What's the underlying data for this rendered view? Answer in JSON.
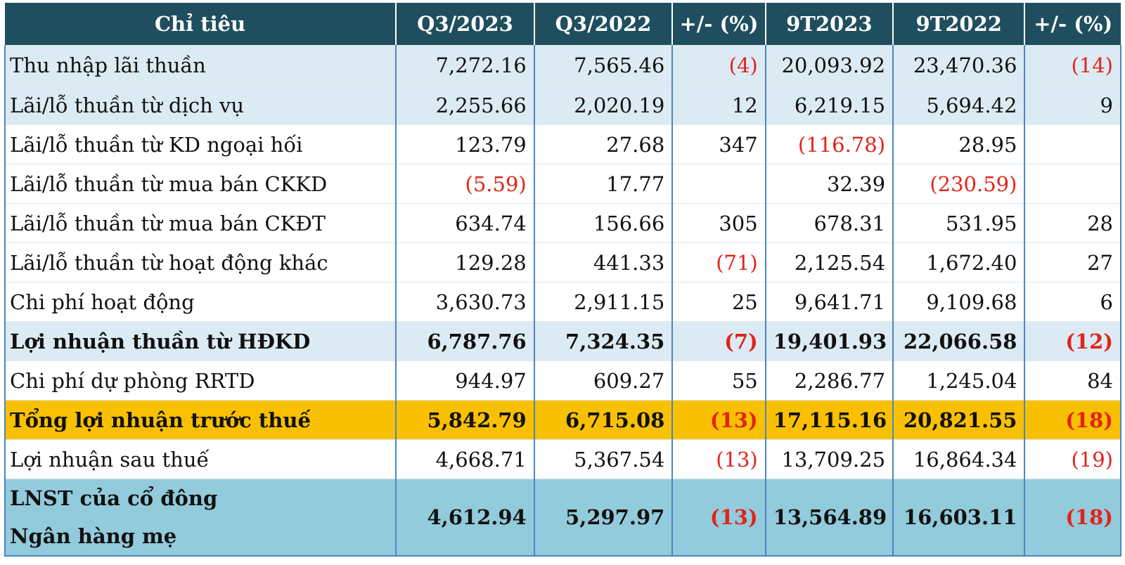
{
  "headers": [
    "Chỉ tiêu",
    "Q3/2023",
    "Q3/2022",
    "+/- (%)",
    "9T2023",
    "9T2022",
    "+/- (%)"
  ],
  "rows": [
    {
      "label": "Thu nhập lãi thuần",
      "style": "light",
      "values": [
        "7,272.16",
        "7,565.46",
        "(4)",
        "20,093.92",
        "23,470.36",
        "(14)"
      ]
    },
    {
      "label": "Lãi/lỗ thuần từ dịch vụ",
      "style": "light",
      "values": [
        "2,255.66",
        "2,020.19",
        "12",
        "6,219.15",
        "5,694.42",
        "9"
      ]
    },
    {
      "label": "Lãi/lỗ thuần từ KD ngoại hối",
      "style": "white",
      "values": [
        "123.79",
        "27.68",
        "347",
        "(116.78)",
        "28.95",
        ""
      ]
    },
    {
      "label": "Lãi/lỗ thuần từ mua bán CKKD",
      "style": "white",
      "values": [
        "(5.59)",
        "17.77",
        "",
        "32.39",
        "(230.59)",
        ""
      ]
    },
    {
      "label": "Lãi/lỗ thuần từ mua bán CKĐT",
      "style": "white",
      "values": [
        "634.74",
        "156.66",
        "305",
        "678.31",
        "531.95",
        "28"
      ]
    },
    {
      "label": "Lãi/lỗ thuần từ hoạt động khác",
      "style": "white",
      "values": [
        "129.28",
        "441.33",
        "(71)",
        "2,125.54",
        "1,672.40",
        "27"
      ]
    },
    {
      "label": "Chi phí hoạt động",
      "style": "white",
      "values": [
        "3,630.73",
        "2,911.15",
        "25",
        "9,641.71",
        "9,109.68",
        "6"
      ]
    },
    {
      "label": "Lợi nhuận thuần từ HĐKD",
      "style": "light bold",
      "values": [
        "6,787.76",
        "7,324.35",
        "(7)",
        "19,401.93",
        "22,066.58",
        "(12)"
      ]
    },
    {
      "label": "Chi phí dự phòng RRTD",
      "style": "white",
      "values": [
        "944.97",
        "609.27",
        "55",
        "2,286.77",
        "1,245.04",
        "84"
      ]
    },
    {
      "label": "Tổng lợi nhuận trước thuế",
      "style": "gold bold",
      "values": [
        "5,842.79",
        "6,715.08",
        "(13)",
        "17,115.16",
        "20,821.55",
        "(18)"
      ]
    },
    {
      "label": "Lợi nhuận sau thuế",
      "style": "white",
      "values": [
        "4,668.71",
        "5,367.54",
        "(13)",
        "13,709.25",
        "16,864.34",
        "(19)"
      ]
    },
    {
      "label": "LNST của cổ đông",
      "label2": "Ngân hàng mẹ",
      "style": "teal bold last",
      "values": [
        "4,612.94",
        "5,297.97",
        "(13)",
        "13,564.89",
        "16,603.11",
        "(18)"
      ]
    }
  ],
  "colors": {
    "header_bg": "#1f4e5f",
    "light_row": "#dcebf3",
    "highlight_row": "#f9c000",
    "teal_row": "#92cbdb",
    "negative_text": "#e2231a"
  }
}
